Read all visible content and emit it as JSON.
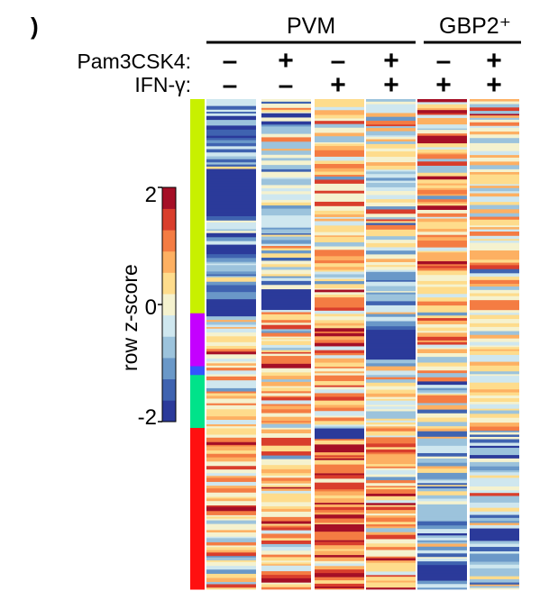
{
  "panel_letter": ")",
  "chart_data": {
    "type": "heatmap",
    "title": "",
    "groups": [
      {
        "label": "PVM",
        "columns": [
          0,
          1,
          2,
          3
        ]
      },
      {
        "label": "GBP2⁺",
        "columns": [
          4,
          5
        ]
      }
    ],
    "conditions": [
      {
        "label": "Pam3CSK4:",
        "values": [
          "–",
          "+",
          "–",
          "+",
          "–",
          "+"
        ]
      },
      {
        "label": "IFN-γ:",
        "values": [
          "–",
          "–",
          "+",
          "+",
          "+",
          "+"
        ]
      }
    ],
    "colorbar": {
      "title": "row z-score",
      "range": [
        -2,
        2
      ],
      "ticks": [
        2,
        0,
        -2
      ],
      "colors": [
        "#2b3a9a",
        "#3f63b0",
        "#6a98c8",
        "#9cc3dc",
        "#cfe7ef",
        "#f5f2cf",
        "#fedc8c",
        "#fdb062",
        "#f47c43",
        "#d93e2c",
        "#a50f26"
      ]
    },
    "row_clusters": [
      {
        "color": "#c8f000",
        "fraction": 0.437
      },
      {
        "color": "#c400ff",
        "fraction": 0.108
      },
      {
        "color": "#3355ff",
        "fraction": 0.018
      },
      {
        "color": "#00e38a",
        "fraction": 0.108
      },
      {
        "color": "#ff1010",
        "fraction": 0.329
      }
    ],
    "column_profiles": [
      {
        "name": "PVM –/–",
        "cluster_means": [
          -1.2,
          0.3,
          0.0,
          0.2,
          0.5
        ],
        "low_blocks": [
          [
            0.14,
            0.23
          ]
        ]
      },
      {
        "name": "PVM +/–",
        "cluster_means": [
          -0.4,
          0.4,
          0.2,
          0.3,
          0.5
        ],
        "low_blocks": [
          [
            0.38,
            0.43
          ]
        ]
      },
      {
        "name": "PVM –/+",
        "cluster_means": [
          0.4,
          0.9,
          0.5,
          0.3,
          0.9
        ],
        "low_blocks": [
          [
            0.67,
            0.69
          ]
        ]
      },
      {
        "name": "PVM +/+",
        "cluster_means": [
          -0.2,
          -1.4,
          0.4,
          0.1,
          0.6
        ],
        "low_blocks": [
          [
            0.47,
            0.53
          ]
        ]
      },
      {
        "name": "GBP2⁺ –/+",
        "cluster_means": [
          0.5,
          0.6,
          0.3,
          0.1,
          -0.6
        ],
        "low_blocks": [
          [
            0.95,
            0.98
          ]
        ]
      },
      {
        "name": "GBP2⁺ +/+",
        "cluster_means": [
          0.3,
          0.2,
          0.3,
          0.0,
          -0.5
        ],
        "low_blocks": [
          [
            0.87,
            0.9
          ]
        ]
      }
    ]
  }
}
